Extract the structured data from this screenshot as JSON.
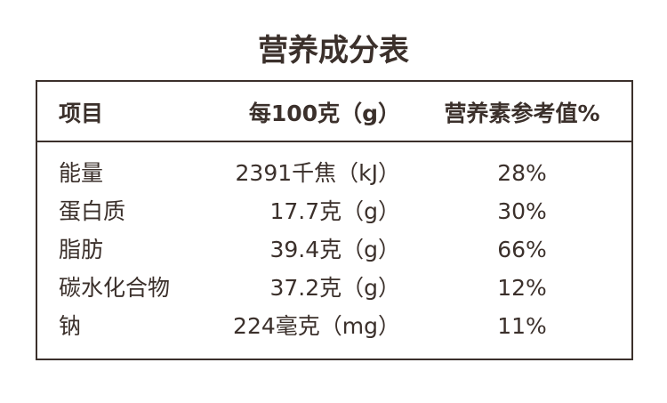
{
  "title": "营养成分表",
  "table": {
    "header": [
      "项目",
      "每100克（g）",
      "营养素参考值%"
    ],
    "rows": [
      [
        "能量",
        "2391千焦（kJ）",
        "28%"
      ],
      [
        "蛋白质",
        "17.7克（g）",
        "30%"
      ],
      [
        "脂肪",
        "39.4克（g）",
        "66%"
      ],
      [
        "碳水化合物",
        "37.2克（g）",
        "12%"
      ],
      [
        "钠",
        "224毫克（mg）",
        "11%"
      ]
    ]
  }
}
